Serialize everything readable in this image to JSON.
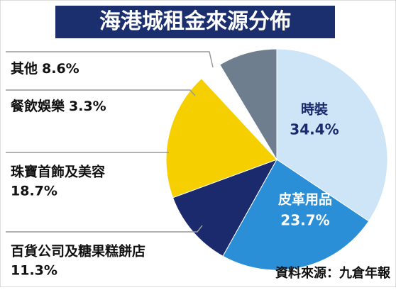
{
  "chart_data": {
    "type": "pie",
    "title": "海港城租金來源分佈",
    "categories": [
      "時裝",
      "皮革用品",
      "百貨公司及糖果糕餅店",
      "珠寶首飾及美容",
      "餐飲娛樂",
      "其他"
    ],
    "values": [
      34.4,
      23.7,
      11.3,
      18.7,
      3.3,
      8.6
    ],
    "value_labels": [
      "34.4%",
      "23.7%",
      "11.3%",
      "18.7%",
      "3.3%",
      "8.6%"
    ],
    "colors": [
      "#cde5f7",
      "#2b8fd8",
      "#1b2a6c",
      "#f6cf00",
      "#ffffff",
      "#6e7e8e"
    ],
    "source": "資料來源：九倉年報"
  }
}
